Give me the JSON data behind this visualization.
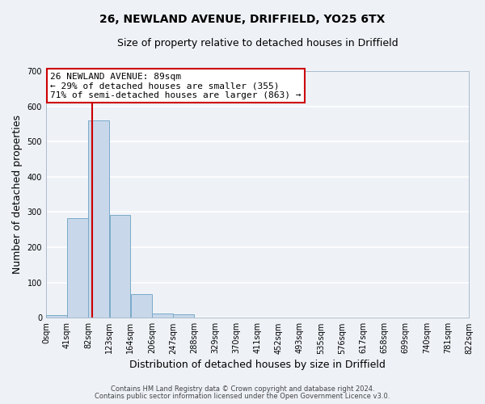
{
  "title_line1": "26, NEWLAND AVENUE, DRIFFIELD, YO25 6TX",
  "title_line2": "Size of property relative to detached houses in Driffield",
  "xlabel": "Distribution of detached houses by size in Driffield",
  "ylabel": "Number of detached properties",
  "bar_color": "#c8d8ea",
  "bar_edge_color": "#7aaac8",
  "bin_edges": [
    0,
    41,
    82,
    123,
    164,
    206,
    247,
    288,
    329,
    370,
    411,
    452,
    493,
    535,
    576,
    617,
    658,
    699,
    740,
    781,
    822
  ],
  "bin_labels": [
    "0sqm",
    "41sqm",
    "82sqm",
    "123sqm",
    "164sqm",
    "206sqm",
    "247sqm",
    "288sqm",
    "329sqm",
    "370sqm",
    "411sqm",
    "452sqm",
    "493sqm",
    "535sqm",
    "576sqm",
    "617sqm",
    "658sqm",
    "699sqm",
    "740sqm",
    "781sqm",
    "822sqm"
  ],
  "counts": [
    7,
    282,
    560,
    293,
    68,
    13,
    9,
    0,
    0,
    0,
    0,
    0,
    0,
    0,
    0,
    0,
    0,
    0,
    0,
    0
  ],
  "ylim": [
    0,
    700
  ],
  "yticks": [
    0,
    100,
    200,
    300,
    400,
    500,
    600,
    700
  ],
  "vline_x": 89,
  "vline_color": "#cc0000",
  "annotation_line1": "26 NEWLAND AVENUE: 89sqm",
  "annotation_line2": "← 29% of detached houses are smaller (355)",
  "annotation_line3": "71% of semi-detached houses are larger (863) →",
  "annotation_box_color": "#ffffff",
  "annotation_box_edge": "#cc0000",
  "footer_line1": "Contains HM Land Registry data © Crown copyright and database right 2024.",
  "footer_line2": "Contains public sector information licensed under the Open Government Licence v3.0.",
  "background_color": "#eef2f7",
  "grid_color": "#ffffff",
  "title_fontsize": 10,
  "subtitle_fontsize": 9,
  "axis_label_fontsize": 9,
  "tick_fontsize": 7,
  "annotation_fontsize": 8,
  "footer_fontsize": 6
}
